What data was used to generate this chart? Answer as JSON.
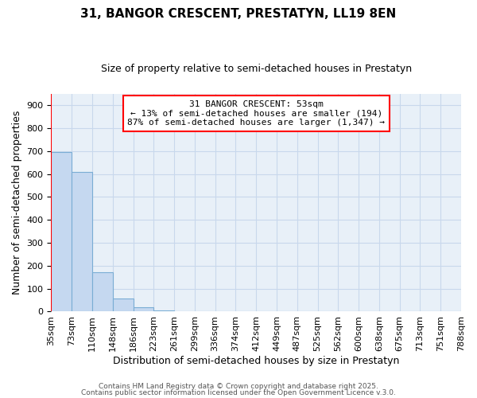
{
  "title": "31, BANGOR CRESCENT, PRESTATYN, LL19 8EN",
  "subtitle": "Size of property relative to semi-detached houses in Prestatyn",
  "bar_values": [
    695,
    610,
    170,
    57,
    18,
    5,
    0,
    0,
    0,
    0,
    0,
    0,
    0,
    0,
    0,
    0,
    0,
    0,
    0,
    0
  ],
  "x_labels": [
    "35sqm",
    "73sqm",
    "110sqm",
    "148sqm",
    "186sqm",
    "223sqm",
    "261sqm",
    "299sqm",
    "336sqm",
    "374sqm",
    "412sqm",
    "449sqm",
    "487sqm",
    "525sqm",
    "562sqm",
    "600sqm",
    "638sqm",
    "675sqm",
    "713sqm",
    "751sqm",
    "788sqm"
  ],
  "bar_color": "#c5d8f0",
  "bar_edge_color": "#7aadd4",
  "ylabel": "Number of semi-detached properties",
  "xlabel": "Distribution of semi-detached houses by size in Prestatyn",
  "ylim": [
    0,
    950
  ],
  "yticks": [
    0,
    100,
    200,
    300,
    400,
    500,
    600,
    700,
    800,
    900
  ],
  "annotation_title": "31 BANGOR CRESCENT: 53sqm",
  "annotation_line1": "← 13% of semi-detached houses are smaller (194)",
  "annotation_line2": "87% of semi-detached houses are larger (1,347) →",
  "background_color": "#ffffff",
  "plot_bg_color": "#e8f0f8",
  "grid_color": "#c8d8ec",
  "footer_line1": "Contains HM Land Registry data © Crown copyright and database right 2025.",
  "footer_line2": "Contains public sector information licensed under the Open Government Licence v.3.0.",
  "title_fontsize": 11,
  "subtitle_fontsize": 9,
  "annotation_fontsize": 8,
  "xlabel_fontsize": 9,
  "ylabel_fontsize": 9,
  "tick_fontsize": 8,
  "footer_fontsize": 6.5
}
